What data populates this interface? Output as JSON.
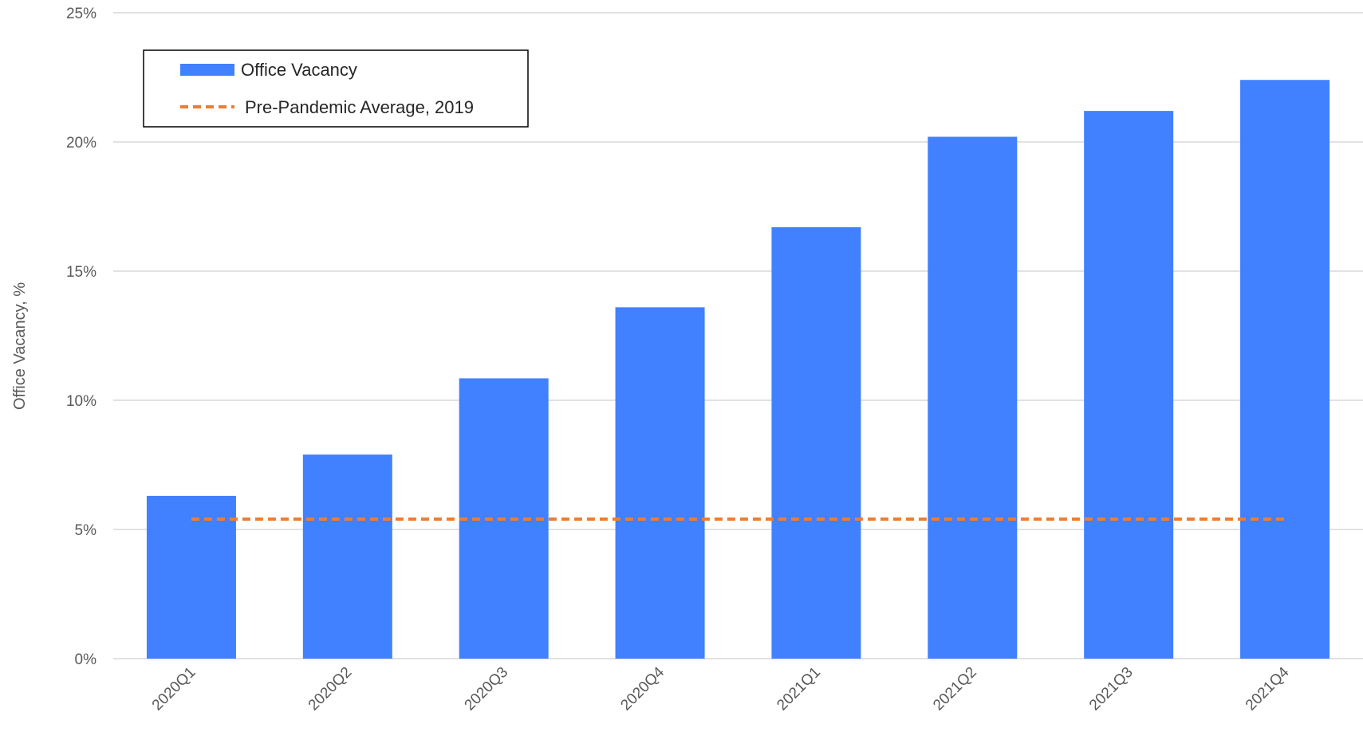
{
  "chart_data": {
    "type": "bar",
    "categories": [
      "2020Q1",
      "2020Q2",
      "2020Q3",
      "2020Q4",
      "2021Q1",
      "2021Q2",
      "2021Q3",
      "2021Q4"
    ],
    "series": [
      {
        "name": "Office Vacancy",
        "type": "bar",
        "color": "#4180FF",
        "values": [
          6.3,
          7.9,
          10.85,
          13.6,
          16.7,
          20.2,
          21.2,
          22.4
        ]
      },
      {
        "name": "Pre-Pandemic Average, 2019",
        "type": "line",
        "style": "dashed",
        "color": "#ED7D31",
        "values": [
          5.4,
          5.4,
          5.4,
          5.4,
          5.4,
          5.4,
          5.4,
          5.4
        ]
      }
    ],
    "title": "",
    "xlabel": "",
    "ylabel": "Office Vacancy, %",
    "ylim": [
      0,
      25
    ],
    "yticks": [
      0,
      5,
      10,
      15,
      20,
      25
    ],
    "ytick_labels": [
      "0%",
      "5%",
      "10%",
      "15%",
      "20%",
      "25%"
    ],
    "grid": true,
    "legend": "top-left"
  }
}
